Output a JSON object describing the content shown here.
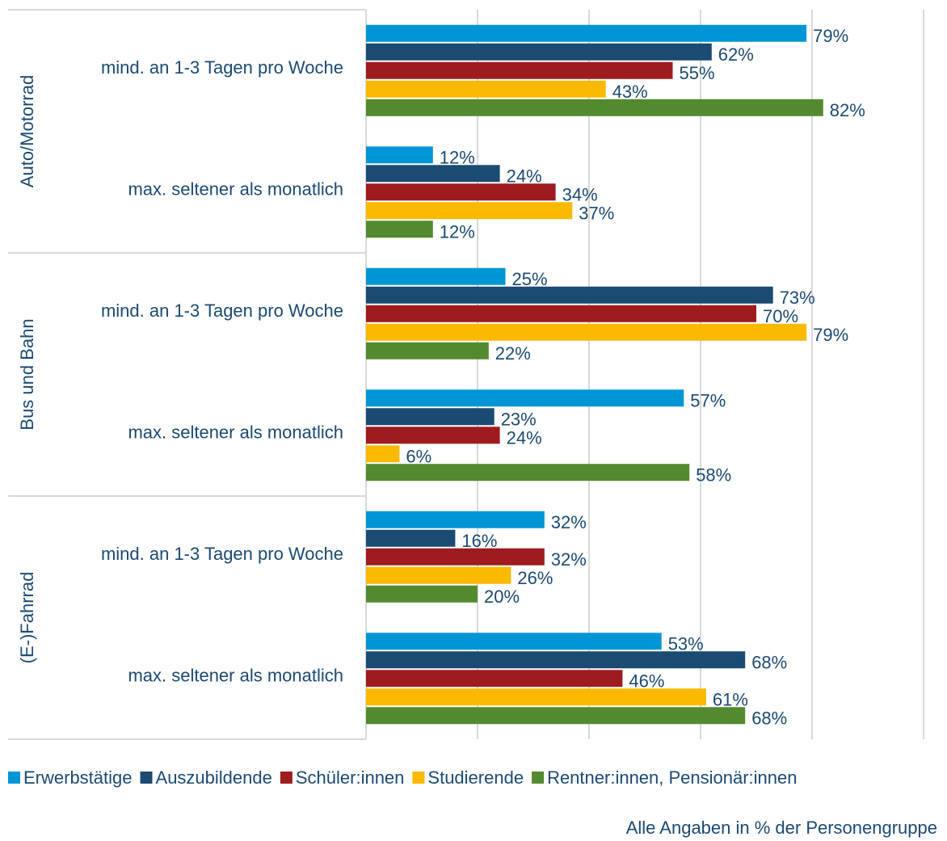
{
  "chart_data": {
    "type": "hbar",
    "groups": [
      "Auto/Motorrad",
      "Bus und Bahn",
      "(E-)Fahrrad"
    ],
    "categories": [
      "mind. an 1-3 Tagen pro Woche",
      "max. seltener als monatlich",
      "mind. an 1-3 Tagen pro Woche",
      "max. seltener als monatlich",
      "mind. an 1-3 Tagen pro Woche",
      "max. seltener als monatlich"
    ],
    "series": [
      {
        "name": "Erwerbstätige",
        "color": "#0096d6",
        "values": [
          79,
          12,
          25,
          57,
          32,
          53
        ],
        "value_labels": [
          "79%",
          "12%",
          "25%",
          "57%",
          "32%",
          "53%"
        ]
      },
      {
        "name": "Auszubildende",
        "color": "#1b4a72",
        "values": [
          62,
          24,
          73,
          23,
          16,
          68
        ],
        "value_labels": [
          "62%",
          "24%",
          "73%",
          "23%",
          "16%",
          "68%"
        ]
      },
      {
        "name": "Schüler:innen",
        "color": "#9e1b1f",
        "values": [
          55,
          34,
          70,
          24,
          32,
          46
        ],
        "value_labels": [
          "55%",
          "34%",
          "70%",
          "24%",
          "32%",
          "46%"
        ]
      },
      {
        "name": "Studierende",
        "color": "#fbb900",
        "values": [
          43,
          37,
          79,
          6,
          26,
          61
        ],
        "value_labels": [
          "43%",
          "37%",
          "79%",
          "6%",
          "26%",
          "61%"
        ]
      },
      {
        "name": "Rentner:innen, Pensionär:innen",
        "color": "#548a2f",
        "values": [
          82,
          12,
          22,
          58,
          20,
          68
        ],
        "value_labels": [
          "82%",
          "12%",
          "22%",
          "58%",
          "20%",
          "68%"
        ]
      }
    ],
    "xlim": [
      0,
      100
    ],
    "xgridlines": [
      0,
      20,
      40,
      60,
      80,
      100
    ],
    "grid": true,
    "legend": "bottom",
    "note": "Alle Angaben in % der Personengruppe"
  }
}
